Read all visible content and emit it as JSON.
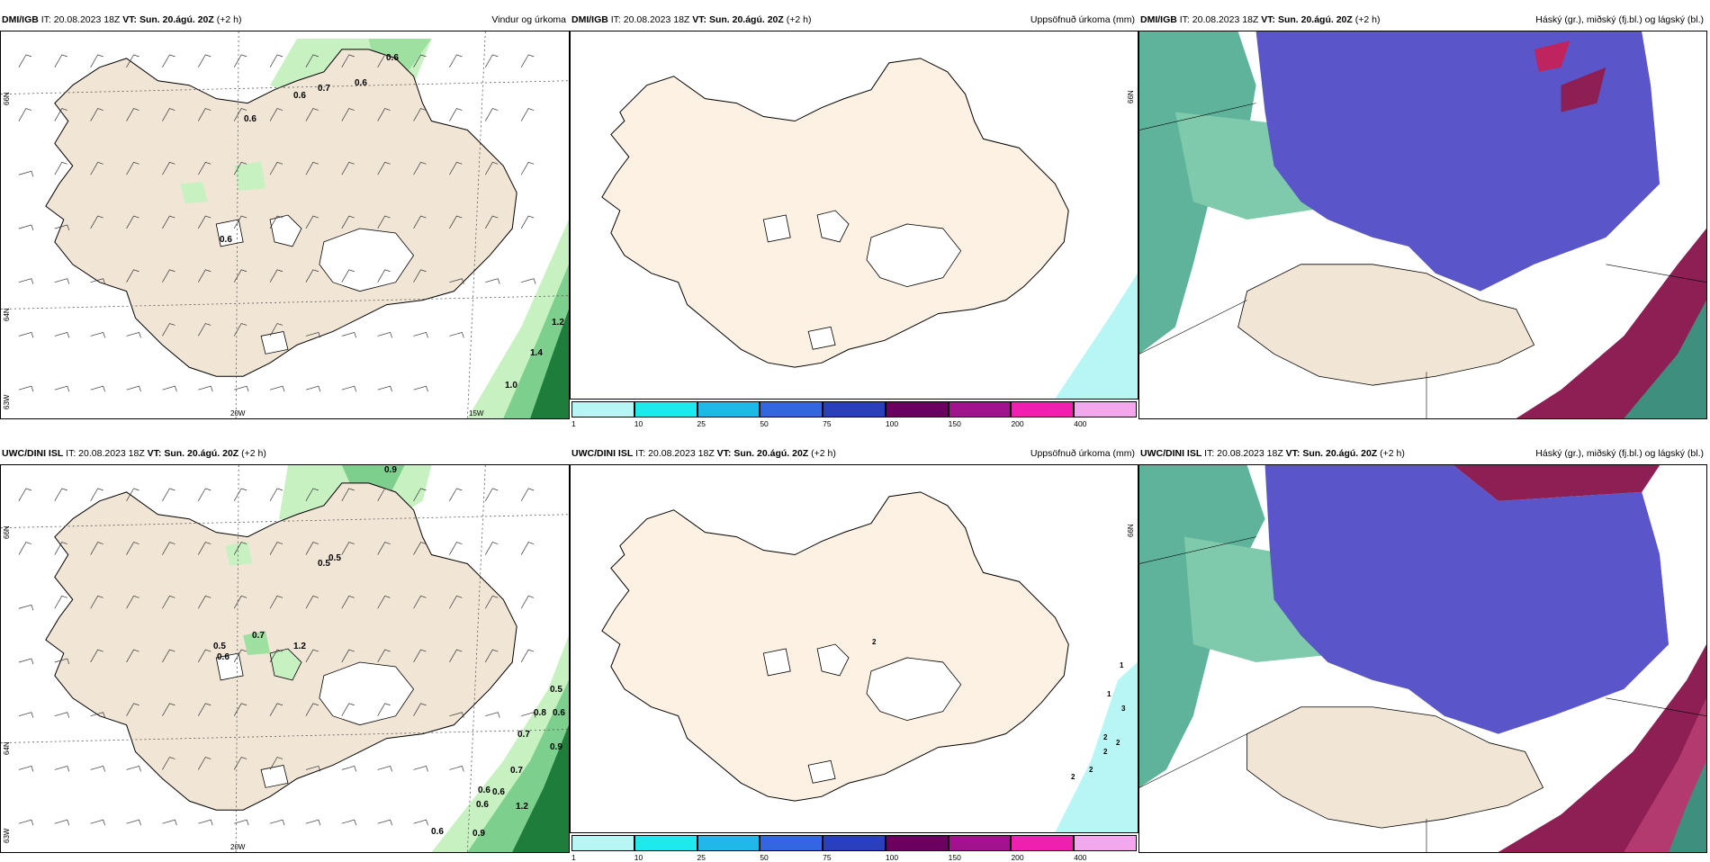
{
  "palette": {
    "land": "#f1e5d6",
    "land_light": "#fdf1e3",
    "precip_light": "#c8f1c2",
    "precip_mid": "#7ccf8c",
    "precip_dark": "#1e7d3a",
    "snow_blue": "#5a55c9",
    "high_cloud_green": "#5fb39a",
    "mid_cloud_maroon": "#8d1f55",
    "low_cloud_teal": "#3f8f7f",
    "cyan_precip": "#b8f6f5"
  },
  "row1": {
    "left": {
      "title_bold": "DMI/IGB",
      "title_it": "IT: 20.08.2023 18Z",
      "title_vt_label": "VT:",
      "title_vt": "Sun. 20.ágú. 20Z",
      "title_lead": "(+2 h)",
      "right_title": "Vindur og úrkoma",
      "lat_labels": [
        "66N",
        "64N",
        "63W"
      ],
      "lon_labels": [
        "20W",
        "15W"
      ],
      "precip_labels": [
        "0.6",
        "0.6",
        "0.7",
        "0.6",
        "0.6",
        "0.6",
        "1.2",
        "1.4",
        "1.0"
      ]
    },
    "middle": {
      "title_bold": "DMI/IGB",
      "title_it": "IT: 20.08.2023 18Z",
      "title_vt_label": "VT:",
      "title_vt": "Sun. 20.ágú. 20Z",
      "title_lead": "(+2 h)",
      "right_title": "Uppsöfnuð úrkoma (mm)",
      "side_label": "66N"
    },
    "right": {
      "title_bold": "DMI/IGB",
      "title_it": "IT: 20.08.2023 18Z",
      "title_vt_label": "VT:",
      "title_vt": "Sun. 20.ágú. 20Z",
      "title_lead": "(+2 h)",
      "right_title": "Háský (gr.), miðský (fj.bl.) og lágský (bl.)"
    }
  },
  "row2": {
    "left": {
      "title_bold": "UWC/DINI ISL",
      "title_it": "IT: 20.08.2023 18Z",
      "title_vt_label": "VT:",
      "title_vt": "Sun. 20.ágú. 20Z",
      "title_lead": "(+2 h)",
      "lat_labels": [
        "66N",
        "64N",
        "63W"
      ],
      "lon_labels": [
        "20W"
      ],
      "precip_labels": [
        "0.9",
        "0.5",
        "0.5",
        "0.7",
        "0.5",
        "0.6",
        "1.2",
        "0.5",
        "0.8",
        "0.6",
        "0.7",
        "0.9",
        "0.7",
        "0.6",
        "0.6",
        "1.2",
        "0.6",
        "0.6",
        "0.9"
      ]
    },
    "middle": {
      "title_bold": "UWC/DINI ISL",
      "title_it": "IT: 20.08.2023 18Z",
      "title_vt_label": "VT:",
      "title_vt": "Sun. 20.ágú. 20Z",
      "title_lead": "(+2 h)",
      "right_title": "Uppsöfnuð úrkoma (mm)",
      "side_label": "66N",
      "sea_labels": [
        "2",
        "1",
        "1",
        "3",
        "2",
        "2",
        "2",
        "2",
        "2"
      ]
    },
    "right": {
      "title_bold": "UWC/DINI ISL",
      "title_it": "IT: 20.08.2023 18Z",
      "title_vt_label": "VT:",
      "title_vt": "Sun. 20.ágú. 20Z",
      "title_lead": "(+2 h)",
      "right_title": "Háský (gr.), miðský (fj.bl.) og lágský (bl.)"
    }
  },
  "colorbar": {
    "ticks": [
      "1",
      "10",
      "25",
      "50",
      "75",
      "100",
      "150",
      "200",
      "400"
    ],
    "colors": [
      "#b8f6f5",
      "#1ee9ec",
      "#1fb8e9",
      "#3366e0",
      "#2a3fbd",
      "#6b0060",
      "#a2128f",
      "#ef1fb0",
      "#f3a8ee"
    ]
  }
}
